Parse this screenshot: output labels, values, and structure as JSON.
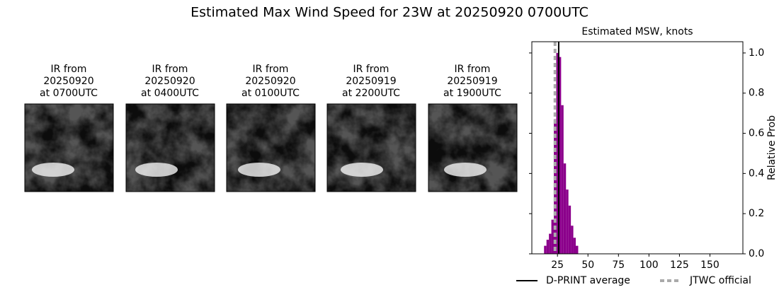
{
  "title": "Estimated Max Wind Speed for 23W at 20250920 0700UTC",
  "panels": [
    {
      "lines": [
        "IR from",
        "20250920",
        "at 0700UTC"
      ]
    },
    {
      "lines": [
        "IR from",
        "20250920",
        "at 0400UTC"
      ]
    },
    {
      "lines": [
        "IR from",
        "20250920",
        "at 0100UTC"
      ]
    },
    {
      "lines": [
        "IR from",
        "20250919",
        "at 2200UTC"
      ]
    },
    {
      "lines": [
        "IR from",
        "20250919",
        "at 1900UTC"
      ]
    }
  ],
  "chart_data": {
    "type": "histogram",
    "title": "Estimated MSW, knots",
    "ylabel": "Relative Prob",
    "bins": [
      14,
      16,
      18,
      20,
      22,
      24,
      26,
      28,
      30,
      32,
      34,
      36,
      38,
      40,
      42
    ],
    "values": [
      0.04,
      0.07,
      0.1,
      0.17,
      0.67,
      1.0,
      0.98,
      0.74,
      0.45,
      0.32,
      0.24,
      0.14,
      0.08,
      0.04
    ],
    "color": "#8b008b",
    "xlim": [
      4,
      177
    ],
    "xticks": [
      25,
      50,
      75,
      100,
      125,
      150
    ],
    "ylim": [
      0,
      1.056
    ],
    "yticks": [
      {
        "value": 0,
        "label": "0.0"
      },
      {
        "value": 0.2,
        "label": "0.2"
      },
      {
        "value": 0.4,
        "label": "0.4"
      },
      {
        "value": 0.6,
        "label": "0.6"
      },
      {
        "value": 0.8,
        "label": "0.8"
      },
      {
        "value": 1,
        "label": "1.0"
      }
    ],
    "lines": [
      {
        "name": "D-PRINT average",
        "value": 26,
        "color": "#000000",
        "style": "solid"
      },
      {
        "name": "JTWC official",
        "value": 23,
        "color": "#aaaaaa",
        "style": "dashed"
      }
    ],
    "legend": "bottom"
  }
}
